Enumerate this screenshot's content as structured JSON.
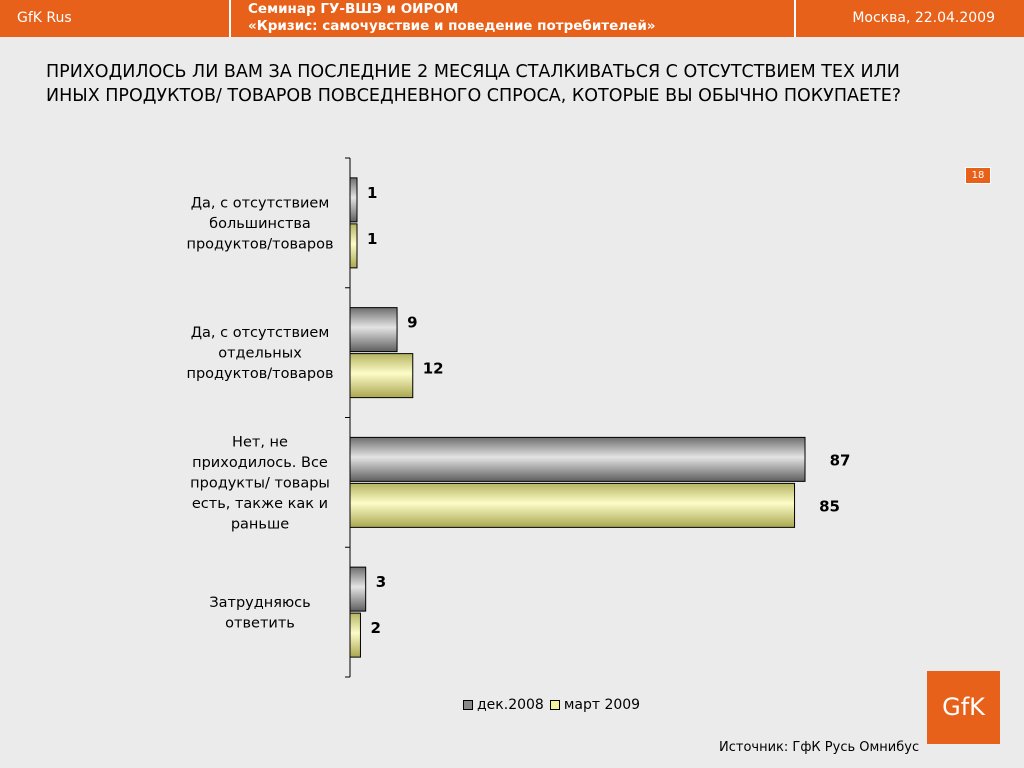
{
  "header": {
    "brand": "GfK Rus",
    "seminar_line1": "Семинар ГУ-ВШЭ и ОИРОМ",
    "seminar_line2": "«Кризис: самочувствие и поведение потребителей»",
    "date": "Москва, 22.04.2009"
  },
  "question_line1": "ПРИХОДИЛОСЬ ЛИ ВАМ ЗА ПОСЛЕДНИЕ 2 МЕСЯЦА СТАЛКИВАТЬСЯ С ОТСУТСТВИЕМ ТЕХ ИЛИ",
  "question_line2": "ИНЫХ ПРОДУКТОВ/ ТОВАРОВ ПОВСЕДНЕВНОГО СПРОСА, КОТОРЫЕ ВЫ ОБЫЧНО ПОКУПАЕТЕ?",
  "page_number": "18",
  "source": "Источник: ГфК Русь Омнибус",
  "logo_text": "GfK",
  "colors": {
    "accent": "#e8611a",
    "series1": "#9a9a9a",
    "series2": "#f2f0a0"
  },
  "chart_data": {
    "type": "bar",
    "orientation": "horizontal",
    "categories": [
      [
        "Да, с отсутствием",
        "большинства",
        "продуктов/товаров"
      ],
      [
        "Да, с отсутствием",
        "отдельных",
        "продуктов/товаров"
      ],
      [
        "Нет, не",
        "приходилось. Все",
        "продукты/ товары",
        "есть, также как и",
        "раньше"
      ],
      [
        "Затрудняюсь",
        "ответить"
      ]
    ],
    "series": [
      {
        "name": "дек.2008",
        "values": [
          1,
          9,
          87,
          3
        ]
      },
      {
        "name": "март 2009",
        "values": [
          1,
          12,
          85,
          2
        ]
      }
    ],
    "xlim": [
      0,
      100
    ],
    "legend": "bottom",
    "grid": false
  }
}
